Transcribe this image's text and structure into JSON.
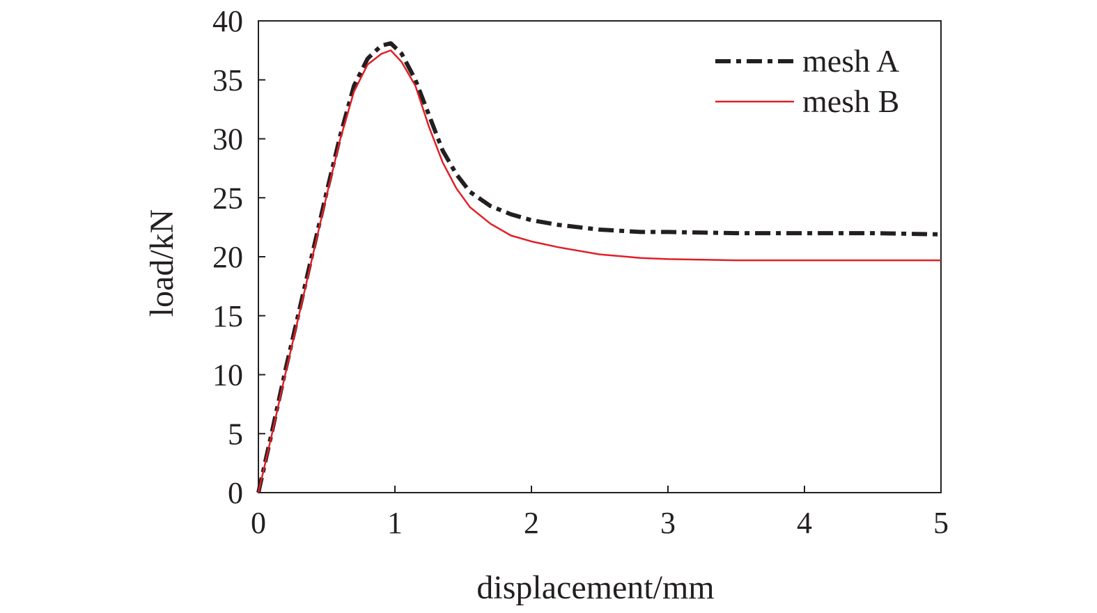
{
  "chart_data": {
    "type": "line",
    "xlabel": "displacement/mm",
    "ylabel": "load/kN",
    "xlim": [
      0,
      5
    ],
    "ylim": [
      0,
      40
    ],
    "xticks": [
      0,
      1,
      2,
      3,
      4,
      5
    ],
    "yticks": [
      0,
      5,
      10,
      15,
      20,
      25,
      30,
      35,
      40
    ],
    "grid": false,
    "legend_position": "top-right",
    "series": [
      {
        "name": "mesh A",
        "color": "#231f20",
        "style": "dash-dot",
        "x": [
          0,
          0.1,
          0.2,
          0.3,
          0.4,
          0.5,
          0.6,
          0.7,
          0.8,
          0.9,
          0.97,
          1.05,
          1.15,
          1.25,
          1.35,
          1.45,
          1.55,
          1.7,
          1.85,
          2.0,
          2.2,
          2.5,
          2.8,
          3.0,
          3.5,
          4.0,
          4.5,
          5.0
        ],
        "y": [
          0,
          5.2,
          10.5,
          15.5,
          20.5,
          25.5,
          30.3,
          34.5,
          36.8,
          37.9,
          38.1,
          37.2,
          35.0,
          32.0,
          29.0,
          27.0,
          25.5,
          24.3,
          23.6,
          23.1,
          22.7,
          22.3,
          22.1,
          22.1,
          22.0,
          22.0,
          22.0,
          21.9
        ]
      },
      {
        "name": "mesh B",
        "color": "#e01f26",
        "style": "solid",
        "x": [
          0,
          0.1,
          0.2,
          0.3,
          0.4,
          0.5,
          0.6,
          0.7,
          0.8,
          0.9,
          0.97,
          1.05,
          1.15,
          1.25,
          1.35,
          1.45,
          1.55,
          1.7,
          1.85,
          2.0,
          2.2,
          2.5,
          2.8,
          3.0,
          3.5,
          4.0,
          4.5,
          5.0
        ],
        "y": [
          0,
          5.0,
          10.2,
          15.2,
          20.2,
          25.2,
          30.0,
          34.0,
          36.3,
          37.2,
          37.5,
          36.5,
          34.5,
          31.0,
          28.0,
          25.8,
          24.2,
          22.8,
          21.8,
          21.3,
          20.8,
          20.2,
          19.9,
          19.8,
          19.7,
          19.7,
          19.7,
          19.7
        ]
      }
    ]
  }
}
